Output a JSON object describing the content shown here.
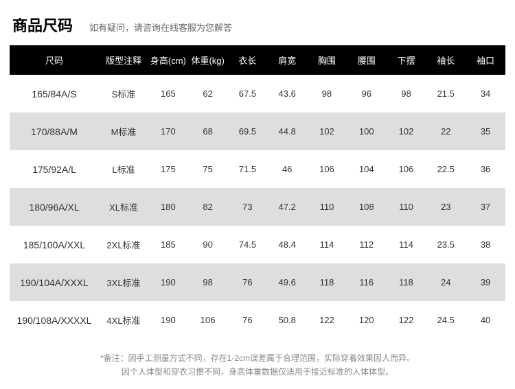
{
  "header": {
    "title": "商品尺码",
    "subtitle": "如有疑问，请咨询在线客服为您解答"
  },
  "table": {
    "columns": [
      {
        "key": "size",
        "label": "尺码",
        "unit": "",
        "class": "col-size"
      },
      {
        "key": "note",
        "label": "版型注释",
        "unit": "",
        "class": "col-note"
      },
      {
        "key": "height",
        "label": "身高",
        "unit": "(cm)",
        "class": ""
      },
      {
        "key": "weight",
        "label": "体重",
        "unit": "(kg)",
        "class": ""
      },
      {
        "key": "length",
        "label": "衣长",
        "unit": "",
        "class": ""
      },
      {
        "key": "shoulder",
        "label": "肩宽",
        "unit": "",
        "class": ""
      },
      {
        "key": "chest",
        "label": "胸围",
        "unit": "",
        "class": ""
      },
      {
        "key": "waist",
        "label": "腰围",
        "unit": "",
        "class": ""
      },
      {
        "key": "hem",
        "label": "下摆",
        "unit": "",
        "class": ""
      },
      {
        "key": "sleeve",
        "label": "袖长",
        "unit": "",
        "class": ""
      },
      {
        "key": "cuff",
        "label": "袖口",
        "unit": "",
        "class": ""
      }
    ],
    "rows": [
      [
        "165/84A/S",
        "S标准",
        "165",
        "62",
        "67.5",
        "43.6",
        "98",
        "96",
        "98",
        "21.5",
        "34"
      ],
      [
        "170/88A/M",
        "M标准",
        "170",
        "68",
        "69.5",
        "44.8",
        "102",
        "100",
        "102",
        "22",
        "35"
      ],
      [
        "175/92A/L",
        "L标准",
        "175",
        "75",
        "71.5",
        "46",
        "106",
        "104",
        "106",
        "22.5",
        "36"
      ],
      [
        "180/96A/XL",
        "XL标准",
        "180",
        "82",
        "73",
        "47.2",
        "110",
        "108",
        "110",
        "23",
        "37"
      ],
      [
        "185/100A/XXL",
        "2XL标准",
        "185",
        "90",
        "74.5",
        "48.4",
        "114",
        "112",
        "114",
        "23.5",
        "38"
      ],
      [
        "190/104A/XXXL",
        "3XL标准",
        "190",
        "98",
        "76",
        "49.6",
        "118",
        "116",
        "118",
        "24",
        "39"
      ],
      [
        "190/108A/XXXXL",
        "4XL标准",
        "190",
        "106",
        "76",
        "50.8",
        "122",
        "120",
        "122",
        "24.5",
        "40"
      ]
    ]
  },
  "footnote": {
    "line1": "*备注：因手工测量方式不同，存在1-2cm误差属于合理范围，实际穿着效果因人而异。",
    "line2": "因个人体型和穿衣习惯不同，身高体重数据仅适用于接近标准的人体体型。"
  },
  "colors": {
    "header_bg": "#000000",
    "header_fg": "#ffffff",
    "row_odd_bg": "#ffffff",
    "row_even_bg": "#dedede",
    "text": "#333333",
    "subtext": "#888888"
  }
}
